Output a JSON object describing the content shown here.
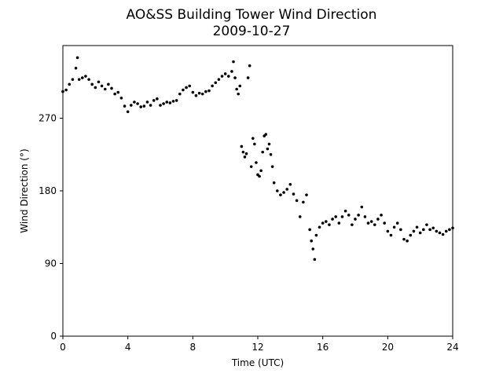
{
  "chart_data": {
    "type": "scatter",
    "title": "AO&SS Building Tower Wind Direction",
    "subtitle": "2009-10-27",
    "xlabel": "Time (UTC)",
    "ylabel": "Wind Direction (°)",
    "xlim": [
      0,
      24
    ],
    "ylim": [
      0,
      360
    ],
    "xticks": [
      0,
      4,
      8,
      12,
      16,
      20,
      24
    ],
    "yticks": [
      0,
      90,
      180,
      270
    ],
    "grid": false,
    "marker_color": "#000000",
    "series": [
      {
        "x": [
          0.0,
          0.2,
          0.4,
          0.6,
          0.8,
          0.9,
          1.0,
          1.2,
          1.4,
          1.6,
          1.8,
          2.0,
          2.2,
          2.4,
          2.6,
          2.8,
          3.0,
          3.2,
          3.4,
          3.6,
          3.8,
          4.0,
          4.2,
          4.4,
          4.6,
          4.8,
          5.0,
          5.2,
          5.4,
          5.6,
          5.8,
          6.0,
          6.2,
          6.4,
          6.6,
          6.8,
          7.0,
          7.2,
          7.4,
          7.6,
          7.8,
          8.0,
          8.2,
          8.4,
          8.6,
          8.8,
          9.0,
          9.2,
          9.4,
          9.6,
          9.8,
          10.0,
          10.2,
          10.4,
          10.5,
          10.6,
          10.7,
          10.8,
          10.9,
          11.0,
          11.1,
          11.2,
          11.3,
          11.4,
          11.5,
          11.6,
          11.7,
          11.8,
          11.9,
          12.0,
          12.1,
          12.2,
          12.3,
          12.4,
          12.5,
          12.6,
          12.7,
          12.8,
          12.9,
          13.0,
          13.2,
          13.4,
          13.6,
          13.8,
          14.0,
          14.2,
          14.4,
          14.6,
          14.8,
          15.0,
          15.2,
          15.3,
          15.4,
          15.5,
          15.6,
          15.8,
          16.0,
          16.2,
          16.4,
          16.6,
          16.8,
          17.0,
          17.2,
          17.4,
          17.6,
          17.8,
          18.0,
          18.2,
          18.4,
          18.6,
          18.8,
          19.0,
          19.2,
          19.4,
          19.6,
          19.8,
          20.0,
          20.2,
          20.4,
          20.6,
          20.8,
          21.0,
          21.2,
          21.4,
          21.6,
          21.8,
          22.0,
          22.2,
          22.4,
          22.6,
          22.8,
          23.0,
          23.2,
          23.4,
          23.6,
          23.8,
          24.0
        ],
        "y": [
          303,
          305,
          312,
          318,
          332,
          345,
          318,
          320,
          322,
          318,
          312,
          308,
          315,
          310,
          306,
          312,
          307,
          300,
          302,
          295,
          285,
          278,
          286,
          290,
          288,
          284,
          285,
          290,
          286,
          292,
          294,
          286,
          288,
          290,
          289,
          291,
          292,
          300,
          305,
          308,
          310,
          302,
          298,
          301,
          300,
          303,
          304,
          310,
          314,
          318,
          322,
          325,
          322,
          328,
          340,
          320,
          306,
          300,
          310,
          235,
          228,
          222,
          226,
          320,
          335,
          210,
          245,
          238,
          215,
          200,
          198,
          205,
          228,
          248,
          250,
          232,
          238,
          225,
          210,
          190,
          180,
          175,
          178,
          182,
          188,
          176,
          168,
          148,
          166,
          175,
          132,
          118,
          108,
          95,
          125,
          135,
          140,
          142,
          138,
          145,
          148,
          140,
          148,
          155,
          150,
          138,
          145,
          150,
          160,
          148,
          140,
          142,
          138,
          145,
          150,
          140,
          130,
          125,
          135,
          140,
          132,
          120,
          118,
          125,
          130,
          135,
          128,
          132,
          138,
          132,
          134,
          130,
          128,
          126,
          130,
          132,
          134
        ]
      }
    ]
  }
}
